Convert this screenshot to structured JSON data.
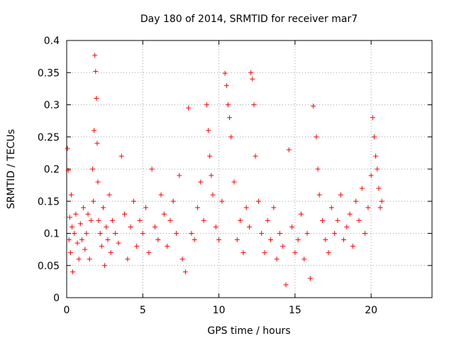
{
  "chart_data": {
    "type": "scatter",
    "title": "Day 180 of 2014, SRMTID for receiver mar7",
    "xlabel": "GPS time / hours",
    "ylabel": "SRMTID / TECUs",
    "xlim": [
      0,
      24
    ],
    "ylim": [
      0,
      0.4
    ],
    "xticks": [
      0,
      5,
      10,
      15,
      20
    ],
    "yticks": [
      0,
      0.05,
      0.1,
      0.15,
      0.2,
      0.25,
      0.3,
      0.35,
      0.4
    ],
    "xtick_labels": [
      "0",
      "5",
      "10",
      "15",
      "20"
    ],
    "ytick_labels": [
      "0",
      "0.05",
      "0.1",
      "0.15",
      "0.2",
      "0.25",
      "0.3",
      "0.35",
      "0.4"
    ],
    "grid": true,
    "marker": "+",
    "marker_color": "#ff0000",
    "series": [
      {
        "name": "SRMTID",
        "x": [
          0.05,
          0.1,
          0.15,
          0.2,
          0.25,
          0.3,
          0.35,
          0.4,
          0.5,
          0.6,
          0.7,
          0.8,
          0.9,
          1.0,
          1.1,
          1.2,
          1.3,
          1.4,
          1.5,
          1.6,
          1.7,
          1.75,
          1.8,
          1.85,
          1.9,
          1.95,
          2.0,
          2.05,
          2.1,
          2.2,
          2.3,
          2.4,
          2.5,
          2.6,
          2.7,
          2.8,
          2.9,
          3.0,
          3.2,
          3.4,
          3.6,
          3.8,
          4.0,
          4.2,
          4.4,
          4.6,
          4.8,
          5.0,
          5.2,
          5.4,
          5.6,
          5.8,
          6.0,
          6.2,
          6.4,
          6.6,
          6.8,
          7.0,
          7.2,
          7.4,
          7.6,
          7.8,
          8.0,
          8.2,
          8.4,
          8.6,
          8.8,
          9.0,
          9.2,
          9.3,
          9.4,
          9.5,
          9.6,
          9.8,
          10.0,
          10.2,
          10.4,
          10.5,
          10.6,
          10.7,
          10.8,
          11.0,
          11.2,
          11.4,
          11.6,
          11.8,
          12.0,
          12.1,
          12.2,
          12.3,
          12.4,
          12.6,
          12.8,
          13.0,
          13.2,
          13.4,
          13.6,
          13.8,
          14.0,
          14.2,
          14.4,
          14.6,
          14.8,
          15.0,
          15.2,
          15.4,
          15.6,
          15.8,
          16.0,
          16.2,
          16.4,
          16.5,
          16.6,
          16.8,
          17.0,
          17.2,
          17.4,
          17.6,
          17.8,
          18.0,
          18.2,
          18.4,
          18.6,
          18.8,
          19.0,
          19.2,
          19.4,
          19.6,
          19.8,
          20.0,
          20.1,
          20.2,
          20.3,
          20.4,
          20.5,
          20.6,
          20.7
        ],
        "y": [
          0.232,
          0.198,
          0.09,
          0.125,
          0.07,
          0.16,
          0.11,
          0.04,
          0.1,
          0.13,
          0.085,
          0.06,
          0.115,
          0.09,
          0.14,
          0.075,
          0.1,
          0.13,
          0.06,
          0.12,
          0.2,
          0.15,
          0.26,
          0.377,
          0.352,
          0.31,
          0.24,
          0.18,
          0.12,
          0.1,
          0.08,
          0.14,
          0.05,
          0.11,
          0.09,
          0.16,
          0.07,
          0.12,
          0.1,
          0.085,
          0.22,
          0.13,
          0.06,
          0.11,
          0.15,
          0.08,
          0.12,
          0.1,
          0.14,
          0.07,
          0.2,
          0.11,
          0.09,
          0.16,
          0.13,
          0.08,
          0.12,
          0.15,
          0.1,
          0.19,
          0.06,
          0.04,
          0.295,
          0.1,
          0.09,
          0.14,
          0.18,
          0.12,
          0.3,
          0.26,
          0.22,
          0.19,
          0.16,
          0.11,
          0.09,
          0.15,
          0.349,
          0.33,
          0.3,
          0.28,
          0.25,
          0.18,
          0.09,
          0.12,
          0.07,
          0.14,
          0.11,
          0.35,
          0.34,
          0.3,
          0.22,
          0.15,
          0.1,
          0.07,
          0.12,
          0.09,
          0.14,
          0.06,
          0.1,
          0.08,
          0.02,
          0.23,
          0.11,
          0.07,
          0.09,
          0.13,
          0.06,
          0.1,
          0.03,
          0.298,
          0.25,
          0.2,
          0.16,
          0.12,
          0.09,
          0.07,
          0.14,
          0.1,
          0.12,
          0.16,
          0.09,
          0.11,
          0.13,
          0.08,
          0.15,
          0.12,
          0.17,
          0.1,
          0.14,
          0.19,
          0.28,
          0.25,
          0.22,
          0.2,
          0.17,
          0.14,
          0.15
        ]
      }
    ]
  }
}
